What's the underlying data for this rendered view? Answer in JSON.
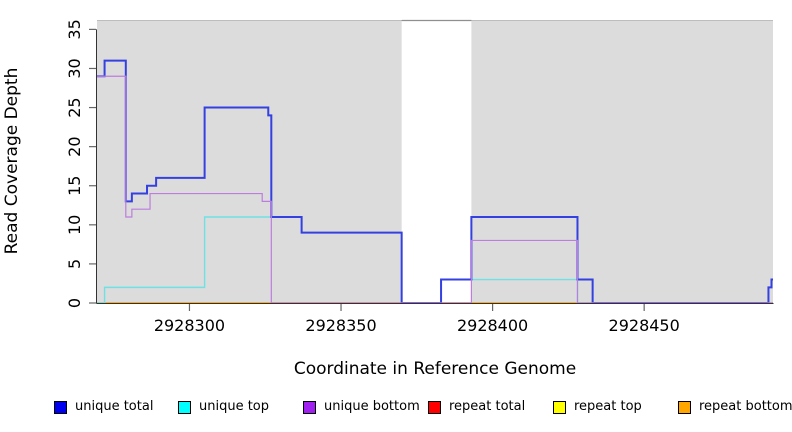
{
  "chart_data": {
    "type": "line",
    "title": "",
    "xlabel": "Coordinate in Reference Genome",
    "ylabel": "Read Coverage Depth",
    "xlim": [
      2928269.5,
      2928492.5
    ],
    "ylim": [
      0,
      36.2
    ],
    "grid": "off",
    "legend_position": "bottom",
    "x_ticks": {
      "values": [
        2928300,
        2928350,
        2928400,
        2928450
      ],
      "labels": [
        "2928300",
        "2928350",
        "2928400",
        "2928450"
      ]
    },
    "y_ticks": {
      "values": [
        0,
        5,
        10,
        15,
        20,
        25,
        30,
        35
      ],
      "labels": [
        "0",
        "5",
        "10",
        "15",
        "20",
        "25",
        "30",
        "35"
      ]
    },
    "background": {
      "plot_fill": "#DCDCDC",
      "page_fill": "#FFFFFF",
      "repeat_region_fill": "#FFFFFF",
      "repeat_region": {
        "start": 2928370,
        "end": 2928393
      },
      "top_edge_color": "#BDBDBD",
      "repeat_region_top_edge_color": "#8F8F8F",
      "axis_color": "#333333",
      "tick_color": "#666666"
    },
    "series": [
      {
        "name": "repeat total",
        "color": "#DC3C5A",
        "line_width": 1.2,
        "steps": [
          [
            2928269.5,
            0
          ]
        ]
      },
      {
        "name": "repeat top",
        "color": "#EEEE00",
        "line_width": 1.2,
        "steps": [
          [
            2928269.5,
            0
          ]
        ]
      },
      {
        "name": "repeat bottom",
        "color": "#FFA41C",
        "line_width": 1.4,
        "steps": [
          [
            2928269.5,
            0
          ]
        ]
      },
      {
        "name": "unique top",
        "color": "#6FE0E4",
        "line_width": 1.4,
        "steps": [
          [
            2928269.5,
            0
          ],
          [
            2928272,
            2
          ],
          [
            2928305,
            11
          ],
          [
            2928337,
            9
          ],
          [
            2928370,
            0
          ],
          [
            2928383,
            3
          ],
          [
            2928428,
            0
          ]
        ]
      },
      {
        "name": "unique total",
        "color": "#3540E0",
        "line_width": 2,
        "steps": [
          [
            2928269.5,
            29
          ],
          [
            2928272,
            31
          ],
          [
            2928279,
            13
          ],
          [
            2928281,
            14
          ],
          [
            2928286,
            15
          ],
          [
            2928289,
            16
          ],
          [
            2928305,
            25
          ],
          [
            2928326,
            24
          ],
          [
            2928327,
            11
          ],
          [
            2928337,
            9
          ],
          [
            2928370,
            0
          ],
          [
            2928383,
            3
          ],
          [
            2928393,
            11
          ],
          [
            2928428,
            3
          ],
          [
            2928433,
            0
          ],
          [
            2928491,
            2
          ],
          [
            2928492,
            3
          ]
        ]
      },
      {
        "name": "unique bottom",
        "color": "#BD7CDE",
        "line_width": 1.2,
        "steps": [
          [
            2928269.5,
            29
          ],
          [
            2928279,
            11
          ],
          [
            2928281,
            12
          ],
          [
            2928287,
            14
          ],
          [
            2928324,
            13
          ],
          [
            2928327,
            0
          ],
          [
            2928393,
            8
          ],
          [
            2928428,
            0
          ]
        ]
      }
    ],
    "legend": {
      "items": [
        {
          "label": "unique total",
          "swatch_color": "#0000EE"
        },
        {
          "label": "unique top",
          "swatch_color": "#00FFFF"
        },
        {
          "label": "unique bottom",
          "swatch_color": "#A020F0"
        },
        {
          "label": "repeat total",
          "swatch_color": "#FF0000"
        },
        {
          "label": "repeat top",
          "swatch_color": "#FFFF00"
        },
        {
          "label": "repeat bottom",
          "swatch_color": "#FFA500"
        }
      ]
    }
  }
}
